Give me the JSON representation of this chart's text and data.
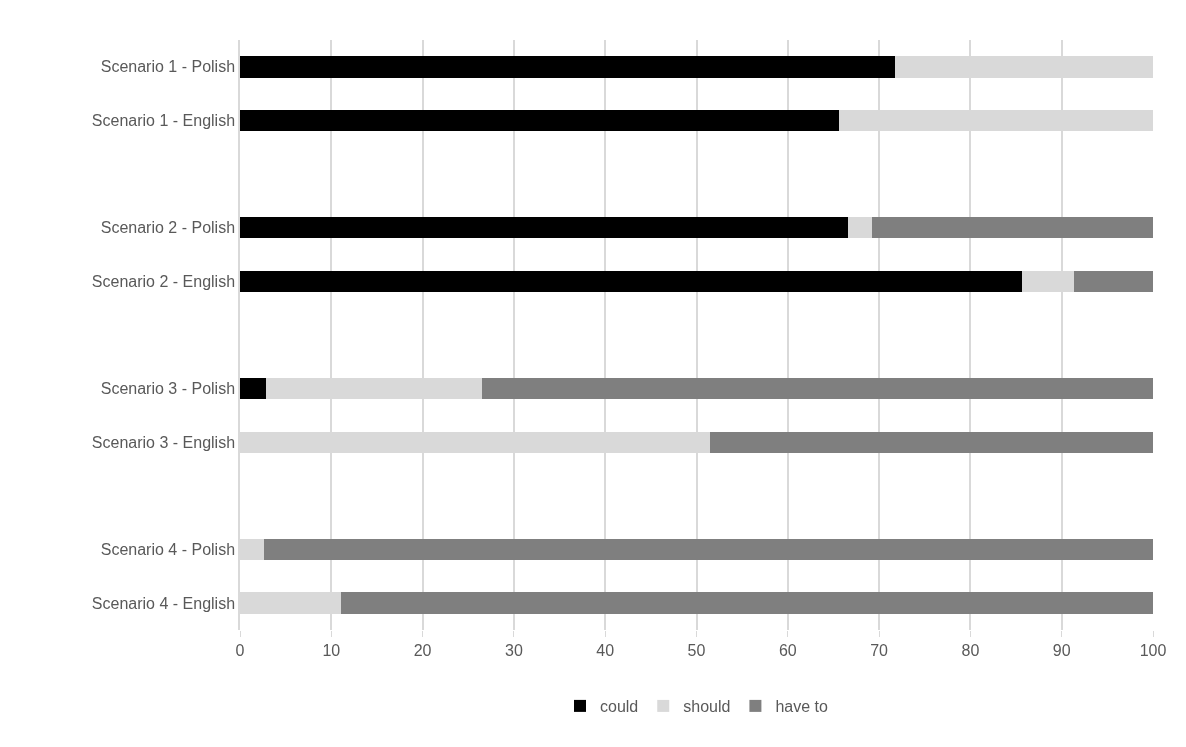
{
  "chart_data": {
    "type": "bar",
    "orientation": "horizontal",
    "stacked": true,
    "categories": [
      "Scenario 1 - Polish",
      "Scenario 1 - English",
      null,
      "Scenario 2 - Polish",
      "Scenario 2 - English",
      null,
      "Scenario 3 - Polish",
      "Scenario 3 - English",
      null,
      "Scenario 4 - Polish",
      "Scenario 4 - English"
    ],
    "series": [
      {
        "name": "could",
        "color": "#000000",
        "values": [
          71.7,
          65.6,
          null,
          66.6,
          85.7,
          null,
          2.9,
          0,
          null,
          0,
          0
        ]
      },
      {
        "name": "should",
        "color": "#d9d9d9",
        "values": [
          28.3,
          34.4,
          null,
          2.6,
          5.7,
          null,
          23.6,
          51.5,
          null,
          2.6,
          11.1
        ]
      },
      {
        "name": "have to",
        "color": "#7f7f7f",
        "values": [
          0,
          0,
          null,
          30.8,
          8.6,
          null,
          73.5,
          48.5,
          null,
          97.4,
          88.9
        ]
      }
    ],
    "xlim": [
      0,
      100
    ],
    "xticks": [
      0,
      10,
      20,
      30,
      40,
      50,
      60,
      70,
      80,
      90,
      100
    ],
    "grid": "x",
    "legend": "bottom"
  }
}
